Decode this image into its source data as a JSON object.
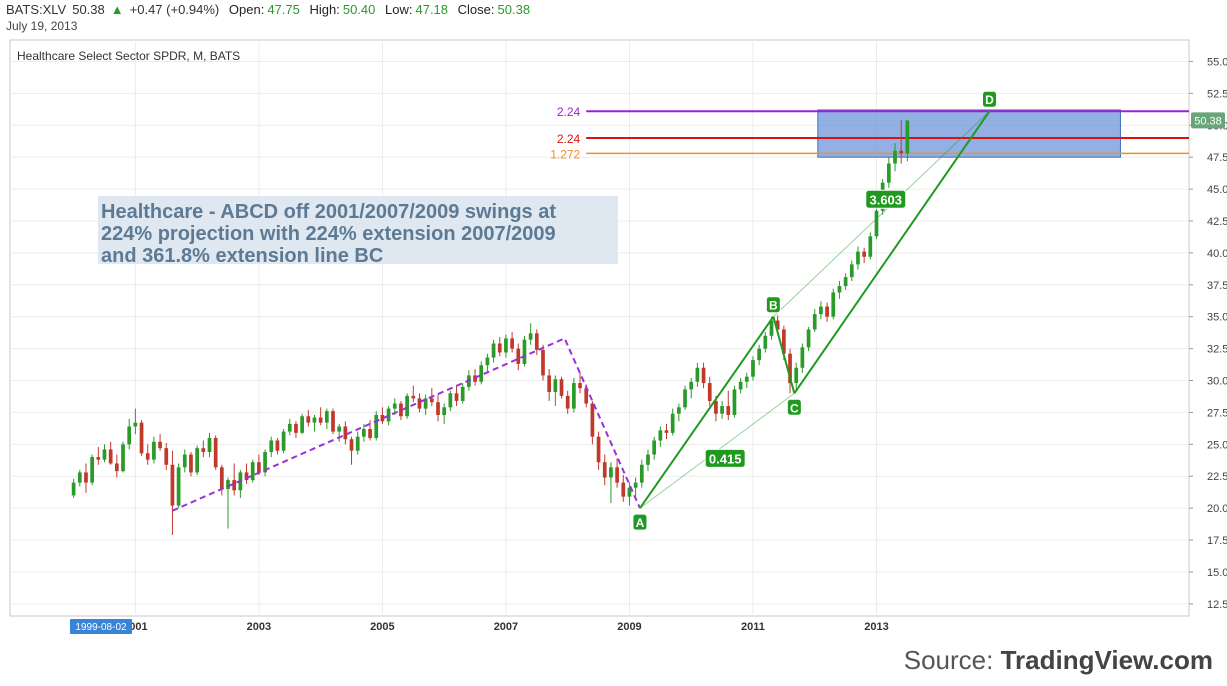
{
  "header": {
    "symbol": "BATS:XLV",
    "price": "50.38",
    "change": "+0.47 (+0.94%)",
    "open_label": "Open:",
    "open": "47.75",
    "high_label": "High:",
    "high": "50.40",
    "low_label": "Low:",
    "low": "47.18",
    "close_label": "Close:",
    "close": "50.38",
    "date": "July 19, 2013"
  },
  "source_prefix": "Source:",
  "source_name": "TradingView.com",
  "colors": {
    "up": "#2a9a2a",
    "down": "#c0392b",
    "pattern": "#1f9a1f",
    "dashed": "#9b30d9",
    "box_fill": "#6d95d9",
    "line_purple": "#a020d0",
    "line_red": "#e01010",
    "line_orange": "#f0902a"
  },
  "chart_data": {
    "type": "candlestick",
    "title": "Healthcare Select Sector SPDR, M, BATS",
    "annotation": "Healthcare - ABCD off 2001/2007/2009 swings at 224% projection with 224% extension 2007/2009 and 361.8% extension line BC",
    "x_range": [
      1998.97,
      2018.06
    ],
    "y_range": [
      11.55,
      56.68
    ],
    "y_ticks": [
      "12.50",
      "15.00",
      "17.50",
      "20.00",
      "22.50",
      "25.00",
      "27.50",
      "30.00",
      "32.50",
      "35.00",
      "37.50",
      "40.00",
      "42.50",
      "45.00",
      "47.50",
      "50.00",
      "52.50",
      "55.00"
    ],
    "x_ticks": [
      {
        "label": "2001",
        "x": 2001.0
      },
      {
        "label": "2003",
        "x": 2003.0
      },
      {
        "label": "2005",
        "x": 2005.0
      },
      {
        "label": "2007",
        "x": 2007.0
      },
      {
        "label": "2009",
        "x": 2009.0
      },
      {
        "label": "2011",
        "x": 2011.0
      },
      {
        "label": "2013",
        "x": 2013.0
      }
    ],
    "x_start_label": "1999-08-02",
    "last_price_label": "50.38",
    "horizontal_levels": [
      {
        "label": "2.24",
        "value": 51.1,
        "color": "purple",
        "x_start": 2008.3
      },
      {
        "label": "2.24",
        "value": 49.0,
        "color": "red",
        "x_start": 2008.3
      },
      {
        "label": "1.272",
        "value": 47.8,
        "color": "orange",
        "x_start": 2008.3
      }
    ],
    "target_box": {
      "x0": 2012.05,
      "x1": 2016.95,
      "y0": 47.5,
      "y1": 51.2
    },
    "pattern_points": [
      {
        "label": "A",
        "x": 2009.17,
        "y": 20.0
      },
      {
        "label": "B",
        "x": 2011.33,
        "y": 35.0
      },
      {
        "label": "C",
        "x": 2011.67,
        "y": 29.0
      },
      {
        "label": "D",
        "x": 2014.83,
        "y": 51.1
      }
    ],
    "pattern_labels": [
      {
        "label": "0.415",
        "x": 2010.55,
        "y": 23.9
      },
      {
        "label": "3.603",
        "x": 2013.15,
        "y": 44.2
      }
    ],
    "dashed_swings": [
      {
        "x": 2001.6,
        "y": 19.8
      },
      {
        "x": 2007.95,
        "y": 33.3
      },
      {
        "x": 2009.17,
        "y": 20.0
      }
    ],
    "ohlc": [
      [
        2000.0,
        21.0,
        22.3,
        20.8,
        22.0
      ],
      [
        2000.1,
        22.0,
        23.0,
        21.7,
        22.8
      ],
      [
        2000.2,
        22.8,
        23.5,
        21.2,
        22.0
      ],
      [
        2000.3,
        22.0,
        24.2,
        21.8,
        24.0
      ],
      [
        2000.4,
        24.0,
        24.8,
        23.4,
        23.8
      ],
      [
        2000.5,
        23.8,
        25.0,
        23.6,
        24.6
      ],
      [
        2000.6,
        24.6,
        25.2,
        23.4,
        23.5
      ],
      [
        2000.7,
        23.5,
        24.2,
        22.4,
        22.9
      ],
      [
        2000.8,
        22.9,
        25.2,
        22.8,
        25.0
      ],
      [
        2000.9,
        25.0,
        27.0,
        24.6,
        26.4
      ],
      [
        2001.0,
        26.4,
        27.8,
        25.8,
        26.7
      ],
      [
        2001.1,
        26.7,
        26.9,
        24.1,
        24.3
      ],
      [
        2001.2,
        24.3,
        25.0,
        23.4,
        23.8
      ],
      [
        2001.3,
        23.8,
        25.6,
        23.5,
        25.2
      ],
      [
        2001.4,
        25.2,
        25.8,
        24.5,
        24.7
      ],
      [
        2001.5,
        24.7,
        25.1,
        23.0,
        23.4
      ],
      [
        2001.6,
        23.4,
        24.5,
        17.9,
        20.2
      ],
      [
        2001.7,
        20.2,
        23.5,
        20.0,
        23.2
      ],
      [
        2001.8,
        23.2,
        24.6,
        22.8,
        24.2
      ],
      [
        2001.9,
        24.2,
        24.4,
        22.5,
        22.8
      ],
      [
        2002.0,
        22.8,
        24.9,
        22.6,
        24.7
      ],
      [
        2002.1,
        24.7,
        25.3,
        24.0,
        24.4
      ],
      [
        2002.2,
        24.4,
        25.9,
        24.0,
        25.5
      ],
      [
        2002.3,
        25.5,
        25.7,
        23.0,
        23.2
      ],
      [
        2002.4,
        23.2,
        23.4,
        21.0,
        21.5
      ],
      [
        2002.5,
        21.5,
        22.4,
        18.4,
        22.2
      ],
      [
        2002.6,
        22.2,
        23.5,
        21.0,
        21.4
      ],
      [
        2002.7,
        21.4,
        23.0,
        20.8,
        22.8
      ],
      [
        2002.8,
        22.8,
        23.5,
        21.9,
        22.2
      ],
      [
        2002.9,
        22.2,
        23.8,
        22.0,
        23.6
      ],
      [
        2003.0,
        23.6,
        24.2,
        22.6,
        22.8
      ],
      [
        2003.1,
        22.8,
        24.6,
        22.5,
        24.4
      ],
      [
        2003.2,
        24.4,
        25.6,
        24.0,
        25.3
      ],
      [
        2003.3,
        25.3,
        25.5,
        24.2,
        24.5
      ],
      [
        2003.4,
        24.5,
        26.2,
        24.3,
        26.0
      ],
      [
        2003.5,
        26.0,
        27.0,
        25.7,
        26.6
      ],
      [
        2003.6,
        26.6,
        26.8,
        25.5,
        25.9
      ],
      [
        2003.7,
        25.9,
        27.4,
        25.8,
        27.2
      ],
      [
        2003.8,
        27.2,
        27.7,
        26.4,
        26.7
      ],
      [
        2003.9,
        26.7,
        27.3,
        26.0,
        27.1
      ],
      [
        2004.0,
        27.1,
        27.9,
        26.5,
        26.7
      ],
      [
        2004.1,
        26.7,
        27.8,
        26.2,
        27.6
      ],
      [
        2004.2,
        27.6,
        27.8,
        25.8,
        26.0
      ],
      [
        2004.3,
        26.0,
        26.6,
        25.2,
        26.4
      ],
      [
        2004.4,
        26.4,
        26.8,
        25.0,
        25.4
      ],
      [
        2004.5,
        25.4,
        25.6,
        23.4,
        24.5
      ],
      [
        2004.6,
        24.5,
        26.0,
        24.2,
        25.6
      ],
      [
        2004.7,
        25.6,
        26.6,
        25.2,
        26.2
      ],
      [
        2004.8,
        26.2,
        26.9,
        25.3,
        25.5
      ],
      [
        2004.9,
        25.5,
        27.6,
        25.3,
        27.3
      ],
      [
        2005.0,
        27.3,
        27.9,
        26.6,
        26.8
      ],
      [
        2005.1,
        26.8,
        28.0,
        26.5,
        27.8
      ],
      [
        2005.2,
        27.8,
        28.6,
        27.3,
        28.2
      ],
      [
        2005.3,
        28.2,
        28.4,
        26.9,
        27.2
      ],
      [
        2005.4,
        27.2,
        29.0,
        27.0,
        28.8
      ],
      [
        2005.5,
        28.8,
        29.6,
        28.3,
        28.6
      ],
      [
        2005.6,
        28.6,
        29.0,
        27.5,
        27.8
      ],
      [
        2005.7,
        27.8,
        28.9,
        27.3,
        28.6
      ],
      [
        2005.8,
        28.6,
        29.4,
        28.0,
        28.3
      ],
      [
        2005.9,
        28.3,
        28.9,
        26.8,
        27.3
      ],
      [
        2006.0,
        27.3,
        28.2,
        26.6,
        27.9
      ],
      [
        2006.1,
        27.9,
        29.2,
        27.6,
        29.0
      ],
      [
        2006.2,
        29.0,
        29.6,
        28.0,
        28.4
      ],
      [
        2006.3,
        28.4,
        29.8,
        28.2,
        29.5
      ],
      [
        2006.4,
        29.5,
        30.8,
        29.2,
        30.4
      ],
      [
        2006.5,
        30.4,
        30.9,
        29.6,
        29.9
      ],
      [
        2006.6,
        29.9,
        31.5,
        29.7,
        31.2
      ],
      [
        2006.7,
        31.2,
        32.1,
        30.6,
        31.8
      ],
      [
        2006.8,
        31.8,
        33.2,
        31.4,
        32.9
      ],
      [
        2006.9,
        32.9,
        33.4,
        31.9,
        32.2
      ],
      [
        2007.0,
        32.2,
        33.6,
        31.8,
        33.3
      ],
      [
        2007.1,
        33.3,
        33.8,
        32.2,
        32.5
      ],
      [
        2007.2,
        32.5,
        32.9,
        30.8,
        31.3
      ],
      [
        2007.3,
        31.3,
        33.5,
        31.1,
        33.2
      ],
      [
        2007.4,
        33.2,
        34.5,
        32.8,
        33.7
      ],
      [
        2007.5,
        33.7,
        34.0,
        32.0,
        32.4
      ],
      [
        2007.6,
        32.4,
        32.8,
        30.0,
        30.4
      ],
      [
        2007.7,
        30.4,
        30.9,
        28.4,
        29.1
      ],
      [
        2007.8,
        29.1,
        30.4,
        28.0,
        30.1
      ],
      [
        2007.9,
        30.1,
        30.3,
        28.6,
        28.8
      ],
      [
        2008.0,
        28.8,
        29.2,
        27.4,
        27.8
      ],
      [
        2008.1,
        27.8,
        30.2,
        27.5,
        29.8
      ],
      [
        2008.2,
        29.8,
        30.6,
        29.0,
        29.4
      ],
      [
        2008.3,
        29.4,
        29.7,
        27.9,
        28.2
      ],
      [
        2008.4,
        28.2,
        28.4,
        25.0,
        25.6
      ],
      [
        2008.5,
        25.6,
        26.0,
        23.0,
        23.6
      ],
      [
        2008.6,
        23.6,
        24.2,
        21.8,
        22.4
      ],
      [
        2008.7,
        22.4,
        23.6,
        20.4,
        23.2
      ],
      [
        2008.8,
        23.2,
        23.9,
        21.6,
        22.0
      ],
      [
        2008.9,
        22.0,
        22.6,
        20.5,
        20.9
      ],
      [
        2009.0,
        20.9,
        22.0,
        20.2,
        21.6
      ],
      [
        2009.1,
        21.6,
        22.4,
        20.8,
        22.0
      ],
      [
        2009.2,
        22.0,
        23.8,
        21.6,
        23.4
      ],
      [
        2009.3,
        23.4,
        24.6,
        22.9,
        24.2
      ],
      [
        2009.4,
        24.2,
        25.6,
        23.8,
        25.3
      ],
      [
        2009.5,
        25.3,
        26.4,
        24.8,
        26.1
      ],
      [
        2009.6,
        26.1,
        26.6,
        25.4,
        25.9
      ],
      [
        2009.7,
        25.9,
        27.8,
        25.7,
        27.4
      ],
      [
        2009.8,
        27.4,
        28.2,
        26.8,
        27.9
      ],
      [
        2009.9,
        27.9,
        29.6,
        27.7,
        29.3
      ],
      [
        2010.0,
        29.3,
        30.2,
        28.6,
        29.9
      ],
      [
        2010.1,
        29.9,
        31.4,
        29.5,
        31.0
      ],
      [
        2010.2,
        31.0,
        31.4,
        29.4,
        29.8
      ],
      [
        2010.3,
        29.8,
        30.3,
        28.0,
        28.4
      ],
      [
        2010.4,
        28.4,
        28.8,
        26.8,
        27.4
      ],
      [
        2010.5,
        27.4,
        28.4,
        27.0,
        28.0
      ],
      [
        2010.6,
        28.0,
        29.2,
        26.9,
        27.3
      ],
      [
        2010.7,
        27.3,
        29.6,
        27.1,
        29.3
      ],
      [
        2010.8,
        29.3,
        30.2,
        29.0,
        29.9
      ],
      [
        2010.9,
        29.9,
        30.6,
        29.4,
        30.3
      ],
      [
        2011.0,
        30.3,
        31.9,
        30.0,
        31.6
      ],
      [
        2011.1,
        31.6,
        32.8,
        31.2,
        32.5
      ],
      [
        2011.2,
        32.5,
        33.8,
        32.2,
        33.5
      ],
      [
        2011.3,
        33.5,
        35.0,
        33.2,
        34.7
      ],
      [
        2011.4,
        34.7,
        35.1,
        33.6,
        34.0
      ],
      [
        2011.5,
        34.0,
        34.3,
        31.6,
        32.1
      ],
      [
        2011.6,
        32.1,
        32.5,
        29.0,
        29.8
      ],
      [
        2011.7,
        29.8,
        31.4,
        29.2,
        31.0
      ],
      [
        2011.8,
        31.0,
        32.9,
        30.6,
        32.6
      ],
      [
        2011.9,
        32.6,
        34.2,
        32.3,
        34.0
      ],
      [
        2012.0,
        34.0,
        35.6,
        33.8,
        35.2
      ],
      [
        2012.1,
        35.2,
        36.2,
        34.8,
        35.8
      ],
      [
        2012.2,
        35.8,
        36.1,
        34.6,
        35.0
      ],
      [
        2012.3,
        35.0,
        37.2,
        34.8,
        36.9
      ],
      [
        2012.4,
        36.9,
        37.8,
        36.4,
        37.4
      ],
      [
        2012.5,
        37.4,
        38.4,
        37.1,
        38.1
      ],
      [
        2012.6,
        38.1,
        39.4,
        37.8,
        39.1
      ],
      [
        2012.7,
        39.1,
        40.5,
        38.7,
        40.1
      ],
      [
        2012.8,
        40.1,
        40.4,
        39.2,
        39.7
      ],
      [
        2012.9,
        39.7,
        41.6,
        39.5,
        41.3
      ],
      [
        2013.0,
        41.3,
        43.6,
        41.1,
        43.3
      ],
      [
        2013.1,
        43.3,
        45.8,
        43.0,
        45.5
      ],
      [
        2013.2,
        45.5,
        47.5,
        45.1,
        47.0
      ],
      [
        2013.3,
        47.0,
        48.6,
        46.4,
        48.0
      ],
      [
        2013.4,
        48.0,
        50.4,
        47.0,
        47.8
      ],
      [
        2013.5,
        47.8,
        50.4,
        47.18,
        50.38
      ]
    ]
  }
}
